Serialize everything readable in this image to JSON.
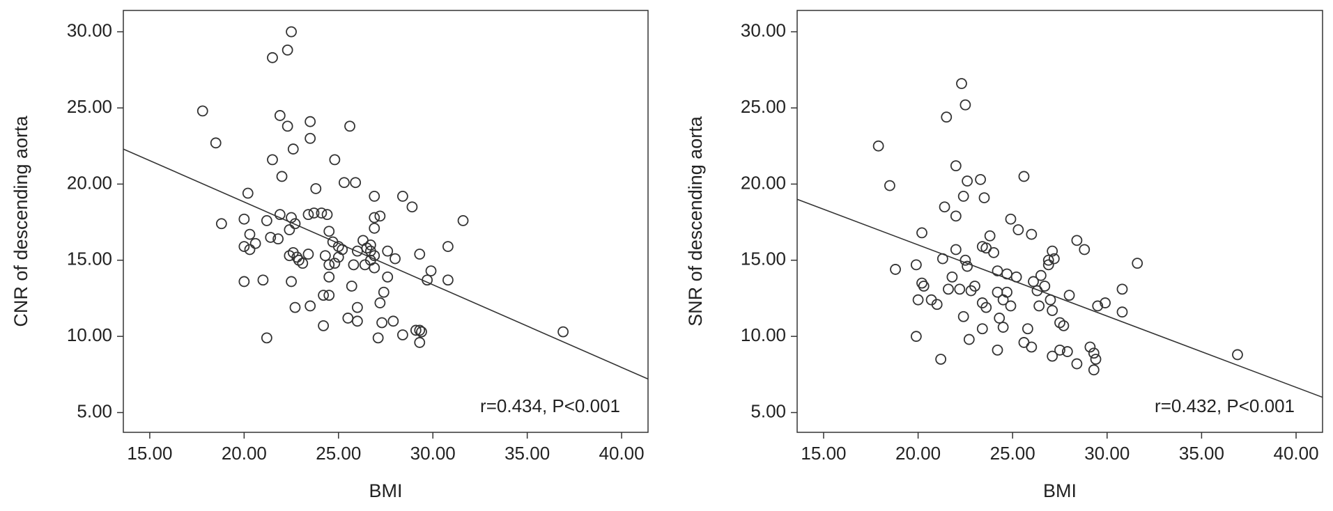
{
  "chart_data": [
    {
      "type": "scatter",
      "x_label": "BMI",
      "y_label": "CNR of descending aorta",
      "annotation": "r=0.434, P<0.001",
      "marker_color": "#333333",
      "xlim": [
        13.6,
        41.4
      ],
      "ylim": [
        3.7,
        31.4
      ],
      "xticks": [
        {
          "value": 15,
          "label": "15.00"
        },
        {
          "value": 20,
          "label": "20.00"
        },
        {
          "value": 25,
          "label": "25.00"
        },
        {
          "value": 30,
          "label": "30.00"
        },
        {
          "value": 35,
          "label": "35.00"
        },
        {
          "value": 40,
          "label": "40.00"
        }
      ],
      "yticks": [
        {
          "value": 5,
          "label": "5.00"
        },
        {
          "value": 10,
          "label": "10.00"
        },
        {
          "value": 15,
          "label": "15.00"
        },
        {
          "value": 20,
          "label": "20.00"
        },
        {
          "value": 25,
          "label": "25.00"
        },
        {
          "value": 30,
          "label": "30.00"
        }
      ],
      "fit_line": {
        "x": [
          13.6,
          41.4
        ],
        "y": [
          22.3,
          7.2
        ]
      },
      "x": [
        17.8,
        18.5,
        18.8,
        20.2,
        20.0,
        20.0,
        20.3,
        20.3,
        20.6,
        20.0,
        21.0,
        21.2,
        21.2,
        21.5,
        22.3,
        22.5,
        21.9,
        22.3,
        21.5,
        22.6,
        22.0,
        21.9,
        21.4,
        21.8,
        22.5,
        22.4,
        22.7,
        22.4,
        22.6,
        22.8,
        22.9,
        22.5,
        22.7,
        23.8,
        23.5,
        23.5,
        23.4,
        23.7,
        24.1,
        24.4,
        23.4,
        23.1,
        23.5,
        24.2,
        24.5,
        24.2,
        24.5,
        24.7,
        24.8,
        25.0,
        25.2,
        24.3,
        24.5,
        24.5,
        24.8,
        25.0,
        25.3,
        25.9,
        25.6,
        25.5,
        26.0,
        26.0,
        25.7,
        25.8,
        26.0,
        26.3,
        26.5,
        26.4,
        26.7,
        26.7,
        26.9,
        26.7,
        26.9,
        26.9,
        26.9,
        27.2,
        26.9,
        27.4,
        27.2,
        27.3,
        27.1,
        27.9,
        27.6,
        27.6,
        28.0,
        28.4,
        28.9,
        28.4,
        29.1,
        29.3,
        29.4,
        29.3,
        29.3,
        29.7,
        29.9,
        30.8,
        30.8,
        31.6,
        36.9
      ],
      "values": [
        24.8,
        22.7,
        17.4,
        19.4,
        17.7,
        15.9,
        15.7,
        16.7,
        16.1,
        13.6,
        13.7,
        9.9,
        17.6,
        28.3,
        28.8,
        30.0,
        24.5,
        23.8,
        21.6,
        22.3,
        20.5,
        18.0,
        16.5,
        16.4,
        17.8,
        17.0,
        17.4,
        15.3,
        15.5,
        15.2,
        15.0,
        13.6,
        11.9,
        19.7,
        24.1,
        23.0,
        18.0,
        18.1,
        18.1,
        18.0,
        15.4,
        14.8,
        12.0,
        12.7,
        12.7,
        10.7,
        16.9,
        16.2,
        21.6,
        15.9,
        15.7,
        15.3,
        14.7,
        13.9,
        14.8,
        15.2,
        20.1,
        20.1,
        23.8,
        11.2,
        11.9,
        11.0,
        13.3,
        14.7,
        15.6,
        16.3,
        15.8,
        14.7,
        16.0,
        15.6,
        15.3,
        15.0,
        14.5,
        17.1,
        17.8,
        17.9,
        19.2,
        12.9,
        12.2,
        10.9,
        9.9,
        11.0,
        13.9,
        15.6,
        15.1,
        19.2,
        18.5,
        10.1,
        10.4,
        10.4,
        10.3,
        9.6,
        15.4,
        13.7,
        14.3,
        13.7,
        15.9,
        17.6,
        10.3
      ]
    },
    {
      "type": "scatter",
      "x_label": "BMI",
      "y_label": "SNR of descending aorta",
      "annotation": "r=0.432, P<0.001",
      "marker_color": "#333333",
      "xlim": [
        13.6,
        41.4
      ],
      "ylim": [
        3.7,
        31.4
      ],
      "xticks": [
        {
          "value": 15,
          "label": "15.00"
        },
        {
          "value": 20,
          "label": "20.00"
        },
        {
          "value": 25,
          "label": "25.00"
        },
        {
          "value": 30,
          "label": "30.00"
        },
        {
          "value": 35,
          "label": "35.00"
        },
        {
          "value": 40,
          "label": "40.00"
        }
      ],
      "yticks": [
        {
          "value": 5,
          "label": "5.00"
        },
        {
          "value": 10,
          "label": "10.00"
        },
        {
          "value": 15,
          "label": "15.00"
        },
        {
          "value": 20,
          "label": "20.00"
        },
        {
          "value": 25,
          "label": "25.00"
        },
        {
          "value": 30,
          "label": "30.00"
        }
      ],
      "fit_line": {
        "x": [
          13.6,
          41.4
        ],
        "y": [
          19.0,
          6.0
        ]
      },
      "x": [
        17.9,
        18.5,
        18.8,
        19.9,
        19.9,
        20.0,
        20.2,
        20.3,
        20.2,
        20.7,
        21.0,
        21.2,
        21.3,
        21.5,
        21.4,
        21.6,
        21.8,
        22.0,
        22.0,
        22.0,
        22.2,
        22.3,
        22.5,
        22.4,
        22.6,
        22.5,
        22.6,
        22.4,
        22.7,
        22.8,
        23.0,
        23.3,
        23.5,
        23.4,
        23.8,
        23.6,
        23.4,
        23.6,
        23.4,
        24.0,
        24.2,
        24.2,
        24.3,
        24.2,
        24.5,
        24.5,
        24.7,
        24.7,
        24.9,
        24.9,
        25.2,
        25.3,
        25.6,
        25.6,
        25.8,
        26.0,
        26.0,
        26.1,
        26.3,
        26.4,
        26.5,
        26.7,
        26.9,
        26.9,
        27.1,
        27.2,
        27.0,
        27.1,
        27.1,
        27.5,
        27.7,
        27.5,
        27.9,
        28.0,
        28.4,
        28.8,
        28.4,
        29.1,
        29.3,
        29.4,
        29.3,
        29.5,
        29.9,
        30.8,
        30.8,
        31.6,
        36.9
      ],
      "values": [
        22.5,
        19.9,
        14.4,
        14.7,
        10.0,
        12.4,
        13.5,
        13.3,
        16.8,
        12.4,
        12.1,
        8.5,
        15.1,
        24.4,
        18.5,
        13.1,
        13.9,
        17.9,
        21.2,
        15.7,
        13.1,
        26.6,
        25.2,
        19.2,
        20.2,
        15.0,
        14.6,
        11.3,
        9.8,
        13.0,
        13.3,
        20.3,
        19.1,
        15.9,
        16.6,
        15.8,
        12.2,
        11.9,
        10.5,
        15.5,
        14.3,
        12.9,
        11.2,
        9.1,
        10.6,
        12.4,
        12.9,
        14.1,
        17.7,
        12.0,
        13.9,
        17.0,
        20.5,
        9.6,
        10.5,
        9.3,
        16.7,
        13.6,
        13.0,
        12.0,
        14.0,
        13.3,
        14.7,
        15.0,
        15.6,
        15.1,
        12.4,
        11.7,
        8.7,
        10.9,
        10.7,
        9.1,
        9.0,
        12.7,
        16.3,
        15.7,
        8.2,
        9.3,
        8.9,
        8.5,
        7.8,
        12.0,
        12.2,
        13.1,
        11.6,
        14.8,
        8.8
      ]
    }
  ]
}
